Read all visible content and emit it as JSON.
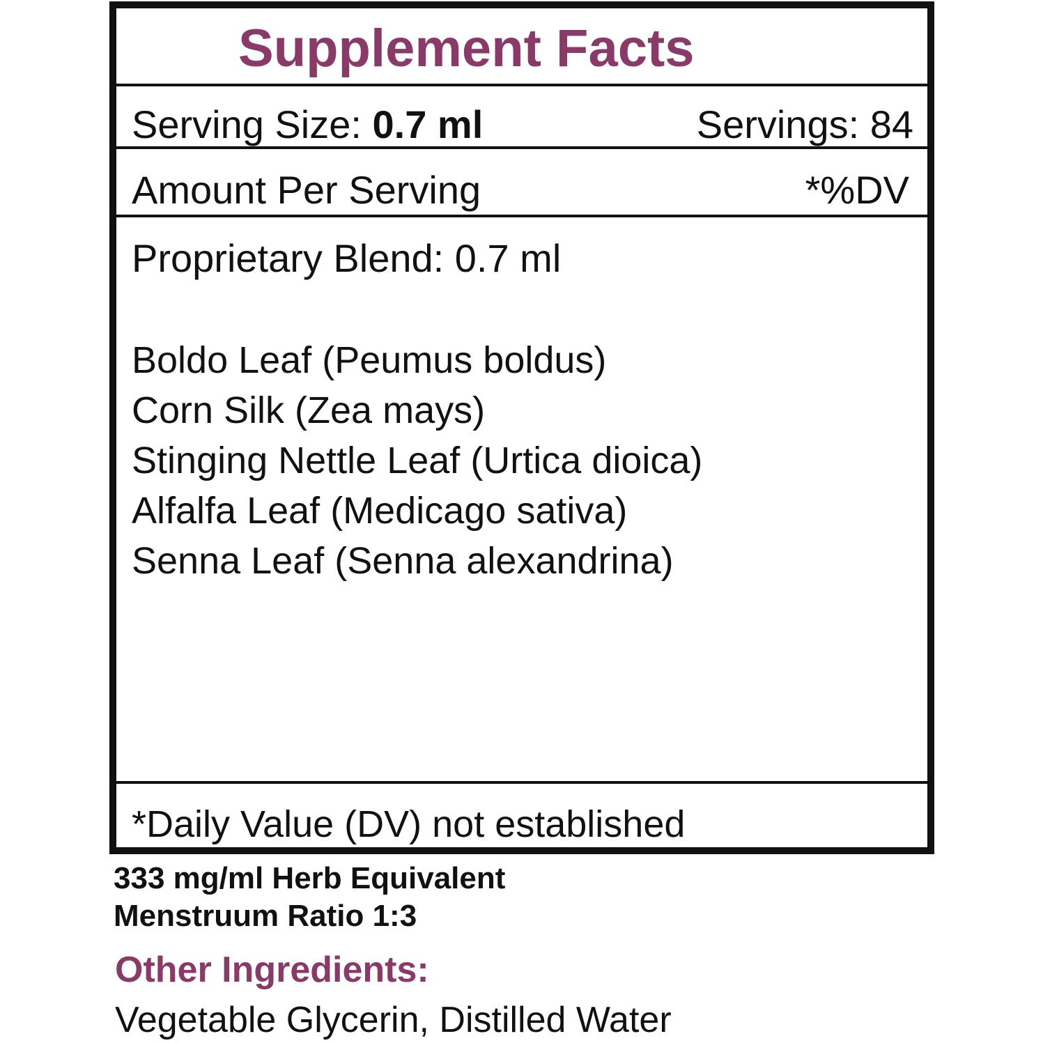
{
  "title": "Supplement Facts",
  "serving": {
    "size_label": "Serving Size:",
    "size_value": "0.7 ml",
    "servings_label": "Servings: 84"
  },
  "header": {
    "amount_label": "Amount Per Serving",
    "dv_label": "*%DV"
  },
  "blend": {
    "label": "Proprietary Blend: 0.7 ml"
  },
  "ingredients": [
    "Boldo Leaf (Peumus boldus)",
    "Corn Silk (Zea mays)",
    "Stinging Nettle Leaf (Urtica dioica)",
    "Alfalfa Leaf (Medicago sativa)",
    "Senna Leaf (Senna alexandrina)"
  ],
  "footnote": "*Daily Value (DV) not established",
  "notes": [
    "333 mg/ml Herb Equivalent",
    "Menstruum Ratio 1:3"
  ],
  "other": {
    "heading": "Other Ingredients:",
    "text": "Vegetable Glycerin, Distilled Water"
  },
  "colors": {
    "accent": "#8a3a68",
    "text": "#111111"
  }
}
